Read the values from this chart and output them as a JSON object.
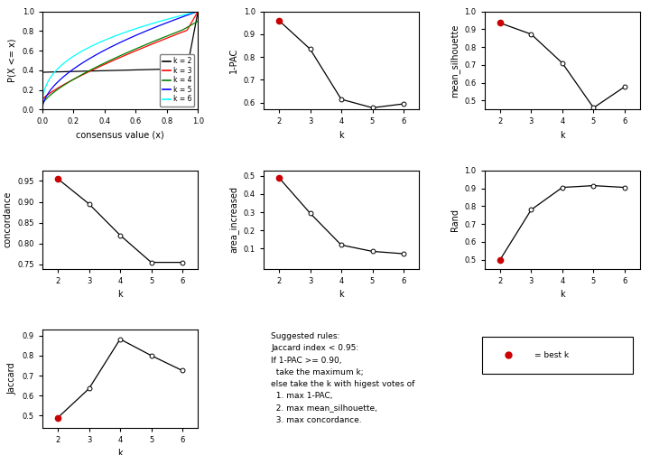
{
  "k_values": [
    2,
    3,
    4,
    5,
    6
  ],
  "pac_1": [
    0.96,
    0.835,
    0.615,
    0.578,
    0.595
  ],
  "mean_silhouette": [
    0.935,
    0.872,
    0.71,
    0.46,
    0.578
  ],
  "concordance": [
    0.955,
    0.895,
    0.82,
    0.755,
    0.755
  ],
  "area_increased": [
    0.49,
    0.295,
    0.12,
    0.085,
    0.072
  ],
  "rand": [
    0.5,
    0.78,
    0.905,
    0.915,
    0.905
  ],
  "jaccard": [
    0.49,
    0.635,
    0.882,
    0.8,
    0.725
  ],
  "line_colors": [
    "black",
    "red",
    "green",
    "blue",
    "cyan"
  ],
  "legend_labels": [
    "k = 2",
    "k = 3",
    "k = 4",
    "k = 5",
    "k = 6"
  ],
  "bg_color": "#ffffff",
  "point_color_best": "#cc0000",
  "point_color_normal": "white"
}
